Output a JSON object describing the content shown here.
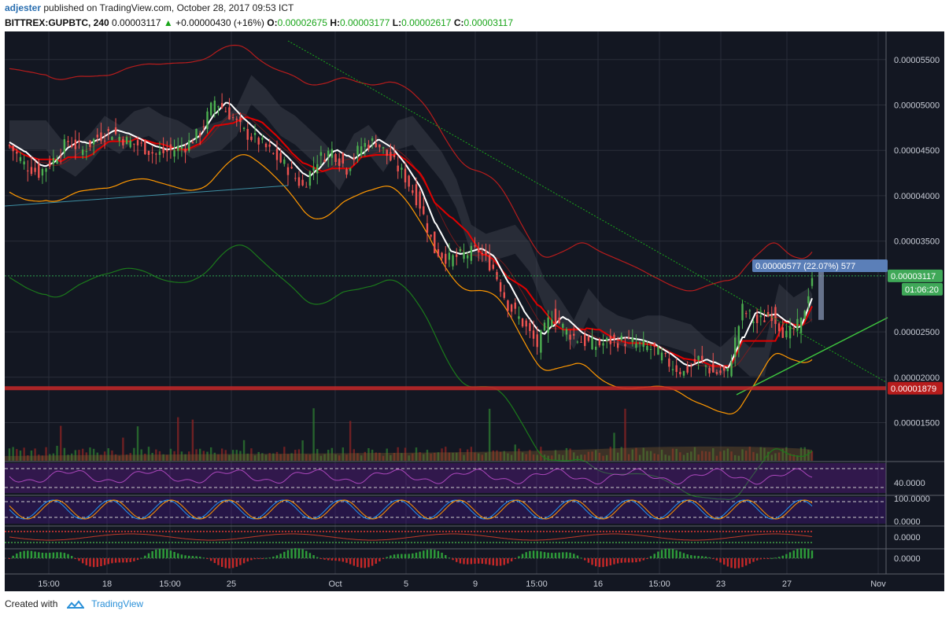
{
  "header": {
    "user": "adjester",
    "published_text": "published on TradingView.com, October 28, 2017 09:53 ICT",
    "symbol": "BITTREX:GUPBTC, 240",
    "price": "0.00003117",
    "change": "+0.00000430 (+16%)",
    "o_label": "O:",
    "o_value": "0.00002675",
    "h_label": "H:",
    "h_value": "0.00003177",
    "l_label": "L:",
    "l_value": "0.00002617",
    "c_label": "C:",
    "c_value": "0.00003117"
  },
  "footer": {
    "created_with": "Created with",
    "brand": "TradingView"
  },
  "colors": {
    "background": "#131722",
    "grid": "#2a2e39",
    "bull": "#4caf50",
    "bear": "#ef5350",
    "conversion": "#ffffff",
    "base": "#e00000",
    "band": "#c62828"
  },
  "chart_data": {
    "type": "line",
    "title": "BITTREX:GUPBTC, 240",
    "x_labels": [
      "15:00",
      "18",
      "15:00",
      "25",
      "Oct",
      "5",
      "9",
      "15:00",
      "16",
      "15:00",
      "23",
      "27",
      "Nov"
    ],
    "price_ticks": [
      "0.00005500",
      "0.00005000",
      "0.00004500",
      "0.00004000",
      "0.00003500",
      "0.00002500",
      "0.00002000",
      "0.00001500"
    ],
    "ylim": [
      1.08e-05,
      5.81e-05
    ],
    "close_series": [
      [
        0,
        4.55e-05
      ],
      [
        8,
        4.35e-05
      ],
      [
        16,
        4.25e-05
      ],
      [
        24,
        4.4e-05
      ],
      [
        32,
        4.6e-05
      ],
      [
        40,
        4.5e-05
      ],
      [
        48,
        4.65e-05
      ],
      [
        56,
        4.7e-05
      ],
      [
        64,
        4.6e-05
      ],
      [
        72,
        4.55e-05
      ],
      [
        80,
        4.45e-05
      ],
      [
        88,
        4.5e-05
      ],
      [
        96,
        4.55e-05
      ],
      [
        104,
        4.7e-05
      ],
      [
        112,
        5.05e-05
      ],
      [
        120,
        4.9e-05
      ],
      [
        128,
        4.7e-05
      ],
      [
        136,
        4.6e-05
      ],
      [
        144,
        4.45e-05
      ],
      [
        152,
        4.3e-05
      ],
      [
        160,
        4.1e-05
      ],
      [
        168,
        4.4e-05
      ],
      [
        176,
        4.5e-05
      ],
      [
        184,
        4.3e-05
      ],
      [
        192,
        4.55e-05
      ],
      [
        200,
        4.6e-05
      ],
      [
        208,
        4.4e-05
      ],
      [
        216,
        4.2e-05
      ],
      [
        224,
        3.9e-05
      ],
      [
        232,
        3.4e-05
      ],
      [
        240,
        3.3e-05
      ],
      [
        248,
        3.35e-05
      ],
      [
        256,
        3.4e-05
      ],
      [
        264,
        3.2e-05
      ],
      [
        272,
        2.8e-05
      ],
      [
        280,
        2.6e-05
      ],
      [
        288,
        2.35e-05
      ],
      [
        296,
        2.7e-05
      ],
      [
        304,
        2.5e-05
      ],
      [
        312,
        2.4e-05
      ],
      [
        320,
        2.35e-05
      ],
      [
        328,
        2.4e-05
      ],
      [
        336,
        2.4e-05
      ],
      [
        344,
        2.35e-05
      ],
      [
        352,
        2.3e-05
      ],
      [
        360,
        2.15e-05
      ],
      [
        368,
        2.05e-05
      ],
      [
        376,
        2.2e-05
      ],
      [
        384,
        2.05e-05
      ],
      [
        392,
        2.05e-05
      ],
      [
        400,
        2.75e-05
      ],
      [
        408,
        2.6e-05
      ],
      [
        416,
        2.7e-05
      ],
      [
        424,
        2.45e-05
      ],
      [
        432,
        2.6e-05
      ],
      [
        438,
        3.117e-05
      ]
    ],
    "annotations": [
      {
        "label": "0.00000577 (22.07%) 577",
        "kind": "measure"
      },
      {
        "label": "0.00003117",
        "kind": "last-price"
      },
      {
        "label": "01:06:20",
        "kind": "countdown"
      },
      {
        "label": "0.00001879",
        "kind": "horizontal-line"
      }
    ],
    "rsi_ticks": [
      "40.0000"
    ],
    "stoch_ticks": [
      "100.0000",
      "0.0000"
    ],
    "osc1_ticks": [
      "0.0000"
    ],
    "osc2_ticks": [
      "0.0000"
    ],
    "grid": true
  }
}
